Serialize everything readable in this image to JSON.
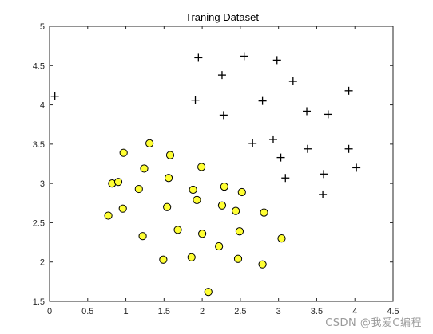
{
  "chart_data": {
    "type": "scatter",
    "title": "Traning Dataset",
    "xlim": [
      0,
      4.5
    ],
    "ylim": [
      1.5,
      5
    ],
    "xticks": [
      "0",
      "0.5",
      "1",
      "1.5",
      "2",
      "2.5",
      "3",
      "3.5",
      "4",
      "4.5"
    ],
    "yticks": [
      "1.5",
      "2",
      "2.5",
      "3",
      "3.5",
      "4",
      "4.5",
      "5"
    ],
    "grid": false,
    "colors": {
      "circle_fill": "#ffff33",
      "circle_edge": "#000000",
      "plus": "#000000",
      "axes": "#262626"
    },
    "series": [
      {
        "marker": "circle",
        "points": [
          [
            0.77,
            2.59
          ],
          [
            0.82,
            3.0
          ],
          [
            0.9,
            3.02
          ],
          [
            0.96,
            2.68
          ],
          [
            0.97,
            3.39
          ],
          [
            1.17,
            2.93
          ],
          [
            1.22,
            2.33
          ],
          [
            1.24,
            3.19
          ],
          [
            1.31,
            3.51
          ],
          [
            1.49,
            2.03
          ],
          [
            1.54,
            2.7
          ],
          [
            1.56,
            3.07
          ],
          [
            1.58,
            3.36
          ],
          [
            1.68,
            2.41
          ],
          [
            1.86,
            2.06
          ],
          [
            1.88,
            2.92
          ],
          [
            1.93,
            2.79
          ],
          [
            1.99,
            3.21
          ],
          [
            2.0,
            2.36
          ],
          [
            2.08,
            1.62
          ],
          [
            2.22,
            2.2
          ],
          [
            2.26,
            2.72
          ],
          [
            2.29,
            2.96
          ],
          [
            2.44,
            2.65
          ],
          [
            2.47,
            2.04
          ],
          [
            2.49,
            2.39
          ],
          [
            2.52,
            2.89
          ],
          [
            2.79,
            1.97
          ],
          [
            2.81,
            2.63
          ],
          [
            3.04,
            2.3
          ]
        ]
      },
      {
        "marker": "plus",
        "points": [
          [
            0.07,
            4.11
          ],
          [
            1.91,
            4.06
          ],
          [
            1.95,
            4.6
          ],
          [
            2.26,
            4.38
          ],
          [
            2.28,
            3.87
          ],
          [
            2.55,
            4.62
          ],
          [
            2.66,
            3.51
          ],
          [
            2.79,
            4.05
          ],
          [
            2.93,
            3.56
          ],
          [
            2.98,
            4.57
          ],
          [
            3.03,
            3.33
          ],
          [
            3.09,
            3.07
          ],
          [
            3.19,
            4.3
          ],
          [
            3.37,
            3.92
          ],
          [
            3.38,
            3.44
          ],
          [
            3.58,
            2.86
          ],
          [
            3.59,
            3.12
          ],
          [
            3.65,
            3.88
          ],
          [
            3.92,
            4.18
          ],
          [
            3.92,
            3.44
          ],
          [
            4.02,
            3.2
          ]
        ]
      }
    ]
  },
  "watermark": "CSDN @我爱C编程"
}
